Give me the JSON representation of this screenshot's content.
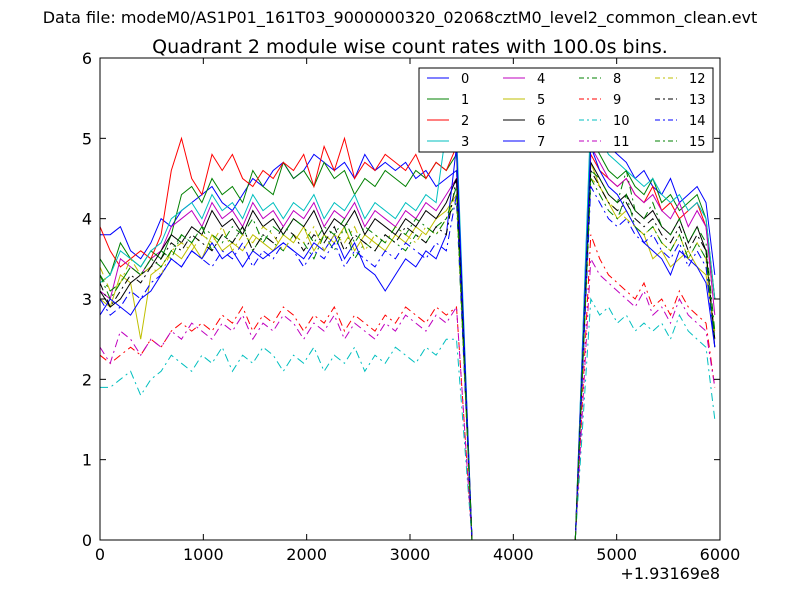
{
  "chart_data": {
    "type": "line",
    "supertitle": "Data file: modeM0/AS1P01_161T03_9000000320_02068cztM0_level2_common_clean.evt",
    "title": "Quadrant 2 module wise count rates with 100.0s bins.",
    "xlabel": "",
    "ylabel": "",
    "x_offset_label": "+1.93169e8",
    "xlim": [
      0,
      6000
    ],
    "ylim": [
      0,
      6
    ],
    "xticks": [
      0,
      1000,
      2000,
      3000,
      4000,
      5000,
      6000
    ],
    "xtick_labels": [
      "0",
      "1000",
      "2000",
      "3000",
      "4000",
      "5000",
      "6000"
    ],
    "yticks": [
      0,
      1,
      2,
      3,
      4,
      5,
      6
    ],
    "ytick_labels": [
      "0",
      "1",
      "2",
      "3",
      "4",
      "5",
      "6"
    ],
    "grid": false,
    "legend_position": "top-right",
    "gap": {
      "x_start": 3450,
      "x_drop": 3600,
      "x_rise_start": 4600,
      "x_peak": 4750
    },
    "series": [
      {
        "name": "0",
        "color": "#0000ff",
        "dash": "solid",
        "seg1": [
          3.8,
          3.8,
          3.9,
          3.6,
          3.5,
          3.7,
          4.0,
          3.9,
          4.1,
          4.2,
          4.3,
          4.4,
          4.2,
          4.1,
          4.3,
          4.5,
          4.4,
          4.6,
          4.7,
          4.5,
          4.6,
          4.8,
          4.7,
          4.6,
          4.7,
          4.5,
          4.8,
          4.6,
          4.7,
          4.6,
          4.7,
          4.5,
          4.6,
          4.4,
          4.5,
          4.6
        ],
        "seg2": [
          5.2,
          5.0,
          4.9,
          4.8,
          4.7,
          4.5,
          4.6,
          4.4,
          4.3,
          4.5,
          4.2,
          4.3,
          4.4,
          4.2,
          3.3
        ]
      },
      {
        "name": "1",
        "color": "#008000",
        "dash": "solid",
        "seg1": [
          3.5,
          3.3,
          3.7,
          3.5,
          3.4,
          3.6,
          3.5,
          3.8,
          4.3,
          4.4,
          4.2,
          4.5,
          4.3,
          4.4,
          4.2,
          4.6,
          4.4,
          4.3,
          4.7,
          4.5,
          4.6,
          4.4,
          4.7,
          4.5,
          4.6,
          4.3,
          4.5,
          4.4,
          4.6,
          4.5,
          4.4,
          4.6,
          4.5,
          4.7,
          4.6,
          4.8
        ],
        "seg2": [
          5.0,
          4.8,
          4.6,
          4.5,
          4.6,
          4.4,
          4.3,
          4.5,
          4.2,
          4.3,
          4.1,
          4.2,
          4.3,
          4.0,
          3.0
        ]
      },
      {
        "name": "2",
        "color": "#ff0000",
        "dash": "solid",
        "seg1": [
          3.9,
          3.6,
          3.4,
          3.5,
          3.6,
          3.5,
          3.8,
          4.6,
          5.0,
          4.5,
          4.3,
          4.8,
          4.6,
          4.8,
          4.5,
          4.4,
          4.6,
          4.5,
          4.7,
          4.6,
          4.8,
          4.4,
          4.9,
          4.6,
          5.0,
          4.5,
          4.7,
          4.6,
          4.8,
          4.7,
          4.6,
          4.8,
          4.5,
          4.7,
          4.6,
          4.9
        ],
        "seg2": [
          4.8,
          4.6,
          4.5,
          4.4,
          4.5,
          4.3,
          4.2,
          4.4,
          4.1,
          4.2,
          4.0,
          4.1,
          4.2,
          3.9,
          3.0
        ]
      },
      {
        "name": "3",
        "color": "#00bfbf",
        "dash": "solid",
        "seg1": [
          3.2,
          3.3,
          3.6,
          3.5,
          3.4,
          3.6,
          3.7,
          4.0,
          4.1,
          4.2,
          4.0,
          4.3,
          4.1,
          4.2,
          4.0,
          4.3,
          4.1,
          4.2,
          4.0,
          4.2,
          4.1,
          4.3,
          4.0,
          4.2,
          4.1,
          4.3,
          4.0,
          4.2,
          4.1,
          4.0,
          4.2,
          4.1,
          4.3,
          4.2,
          5.1,
          5.1
        ],
        "seg2": [
          5.3,
          5.0,
          4.8,
          4.7,
          4.6,
          4.5,
          4.4,
          4.5,
          4.3,
          4.2,
          4.3,
          4.1,
          4.2,
          4.0,
          3.0
        ]
      },
      {
        "name": "4",
        "color": "#bf00bf",
        "dash": "solid",
        "seg1": [
          3.1,
          3.0,
          3.5,
          3.4,
          3.3,
          3.5,
          3.6,
          3.9,
          4.0,
          4.1,
          3.9,
          4.2,
          4.0,
          4.1,
          3.9,
          4.2,
          4.0,
          4.1,
          3.9,
          4.1,
          4.0,
          4.2,
          3.9,
          4.1,
          4.0,
          4.2,
          3.9,
          4.1,
          4.0,
          3.9,
          4.1,
          4.0,
          4.2,
          4.1,
          4.3,
          4.5
        ],
        "seg2": [
          4.9,
          4.7,
          4.5,
          4.4,
          4.5,
          4.3,
          4.2,
          4.3,
          4.1,
          4.0,
          4.2,
          3.9,
          4.1,
          3.9,
          2.8
        ]
      },
      {
        "name": "5",
        "color": "#bfbf00",
        "dash": "solid",
        "seg1": [
          3.0,
          2.9,
          3.3,
          3.2,
          2.5,
          3.3,
          3.4,
          3.6,
          3.5,
          3.7,
          3.5,
          3.8,
          3.6,
          3.7,
          3.6,
          3.8,
          3.7,
          3.6,
          3.8,
          3.7,
          3.9,
          3.6,
          3.8,
          3.7,
          3.9,
          3.6,
          3.8,
          3.7,
          3.6,
          3.8,
          3.7,
          3.9,
          3.8,
          4.0,
          4.1,
          4.3
        ],
        "seg2": [
          4.7,
          4.4,
          4.2,
          4.0,
          4.1,
          3.9,
          3.8,
          3.5,
          3.6,
          3.4,
          3.5,
          3.6,
          3.4,
          3.3,
          2.6
        ]
      },
      {
        "name": "6",
        "color": "#000000",
        "dash": "solid",
        "seg1": [
          3.1,
          2.9,
          3.0,
          3.2,
          3.3,
          3.4,
          3.6,
          3.8,
          3.7,
          3.9,
          3.8,
          4.1,
          3.9,
          4.0,
          3.8,
          4.1,
          3.9,
          4.0,
          3.8,
          4.0,
          3.9,
          4.1,
          3.8,
          4.0,
          3.9,
          4.1,
          3.8,
          4.0,
          3.9,
          3.8,
          4.0,
          3.9,
          4.1,
          4.0,
          4.2,
          4.5
        ],
        "seg2": [
          4.7,
          4.5,
          4.3,
          4.2,
          4.3,
          4.1,
          4.0,
          4.1,
          3.9,
          3.8,
          4.0,
          3.7,
          3.9,
          3.6,
          2.4
        ]
      },
      {
        "name": "7",
        "color": "#0000ff",
        "dash": "solid",
        "seg1": [
          2.8,
          3.0,
          2.9,
          2.8,
          3.0,
          3.1,
          3.3,
          3.5,
          3.4,
          3.6,
          3.5,
          3.7,
          3.5,
          3.6,
          3.4,
          3.6,
          3.5,
          3.6,
          3.7,
          3.6,
          3.5,
          3.7,
          3.6,
          3.8,
          3.5,
          3.7,
          3.4,
          3.3,
          3.1,
          3.3,
          3.5,
          3.4,
          3.6,
          3.5,
          3.8,
          4.9
        ],
        "seg2": [
          4.9,
          4.6,
          4.4,
          4.3,
          4.1,
          3.9,
          3.7,
          3.6,
          3.5,
          3.3,
          3.6,
          3.5,
          3.4,
          3.2,
          2.4
        ]
      },
      {
        "name": "8",
        "color": "#008000",
        "dash": "dashdot",
        "seg1": [
          3.3,
          3.0,
          3.2,
          3.4,
          3.3,
          3.5,
          3.6,
          3.5,
          3.8,
          3.7,
          3.9,
          3.6,
          3.8,
          3.7,
          3.9,
          3.6,
          3.8,
          3.7,
          3.6,
          3.8,
          3.7,
          3.5,
          3.8,
          3.6,
          3.9,
          3.5,
          3.7,
          3.6,
          3.8,
          3.7,
          3.6,
          3.8,
          3.7,
          3.9,
          4.0,
          4.2
        ],
        "seg2": [
          4.6,
          4.5,
          4.3,
          4.2,
          4.6,
          4.1,
          4.0,
          4.2,
          3.9,
          3.8,
          4.0,
          3.7,
          3.9,
          3.7,
          2.6
        ]
      },
      {
        "name": "9",
        "color": "#ff0000",
        "dash": "dashdot",
        "seg1": [
          2.3,
          2.2,
          2.3,
          2.4,
          2.3,
          2.5,
          2.4,
          2.6,
          2.7,
          2.6,
          2.7,
          2.6,
          2.8,
          2.7,
          2.9,
          2.6,
          2.8,
          2.7,
          2.9,
          2.8,
          2.6,
          2.8,
          2.7,
          2.9,
          2.6,
          2.8,
          2.7,
          2.6,
          2.8,
          2.7,
          2.9,
          2.8,
          2.7,
          2.9,
          2.8,
          2.9
        ],
        "seg2": [
          3.8,
          3.5,
          3.3,
          3.2,
          3.1,
          3.0,
          3.2,
          2.9,
          3.0,
          2.8,
          3.1,
          2.9,
          2.8,
          2.7,
          1.9
        ]
      },
      {
        "name": "10",
        "color": "#00bfbf",
        "dash": "dashdot",
        "seg1": [
          1.9,
          1.9,
          2.0,
          2.1,
          1.8,
          2.0,
          2.1,
          2.3,
          2.2,
          2.1,
          2.3,
          2.2,
          2.4,
          2.1,
          2.3,
          2.2,
          2.4,
          2.3,
          2.1,
          2.3,
          2.2,
          2.4,
          2.1,
          2.3,
          2.2,
          2.4,
          2.1,
          2.3,
          2.2,
          2.4,
          2.3,
          2.2,
          2.4,
          2.3,
          2.5,
          2.5
        ],
        "seg2": [
          3.0,
          2.8,
          2.9,
          2.7,
          2.8,
          2.6,
          2.7,
          2.6,
          2.7,
          2.5,
          2.8,
          2.6,
          2.5,
          2.4,
          1.5
        ]
      },
      {
        "name": "11",
        "color": "#bf00bf",
        "dash": "dashdot",
        "seg1": [
          2.4,
          2.2,
          2.6,
          2.5,
          2.3,
          2.5,
          2.4,
          2.6,
          2.5,
          2.7,
          2.6,
          2.5,
          2.7,
          2.6,
          2.8,
          2.5,
          2.7,
          2.6,
          2.8,
          2.7,
          2.5,
          2.7,
          2.6,
          2.8,
          2.5,
          2.7,
          2.6,
          2.5,
          2.7,
          2.6,
          2.8,
          2.7,
          2.6,
          2.8,
          2.7,
          2.9
        ],
        "seg2": [
          3.5,
          3.3,
          3.2,
          3.1,
          3.0,
          2.9,
          3.1,
          2.8,
          2.9,
          2.7,
          3.0,
          2.8,
          2.7,
          2.6,
          1.9
        ]
      },
      {
        "name": "12",
        "color": "#bfbf00",
        "dash": "dashdot",
        "seg1": [
          3.4,
          3.1,
          3.2,
          3.5,
          3.3,
          3.4,
          3.3,
          3.6,
          3.7,
          3.6,
          3.8,
          3.7,
          3.9,
          3.6,
          3.8,
          3.7,
          3.9,
          3.8,
          3.6,
          3.8,
          3.7,
          3.9,
          3.6,
          3.8,
          3.7,
          3.9,
          3.6,
          3.8,
          3.7,
          3.9,
          3.8,
          3.7,
          3.9,
          3.8,
          4.0,
          4.3
        ],
        "seg2": [
          4.5,
          4.4,
          4.2,
          4.1,
          4.0,
          3.9,
          3.8,
          3.9,
          3.7,
          3.6,
          3.8,
          3.5,
          3.7,
          3.5,
          2.5
        ]
      },
      {
        "name": "13",
        "color": "#000000",
        "dash": "dashdot",
        "seg1": [
          3.2,
          2.9,
          3.1,
          3.3,
          3.2,
          3.4,
          3.5,
          3.7,
          3.6,
          3.8,
          3.7,
          3.6,
          3.8,
          3.7,
          3.9,
          3.6,
          3.8,
          3.7,
          3.9,
          3.8,
          3.6,
          3.8,
          3.7,
          3.9,
          3.6,
          3.8,
          3.7,
          3.6,
          3.8,
          3.7,
          3.9,
          3.8,
          3.7,
          3.9,
          3.8,
          4.5
        ],
        "seg2": [
          4.6,
          4.4,
          4.2,
          4.1,
          4.2,
          4.0,
          3.9,
          4.0,
          3.8,
          3.7,
          3.9,
          3.6,
          3.8,
          3.6,
          2.5
        ]
      },
      {
        "name": "14",
        "color": "#0000ff",
        "dash": "dashdot",
        "seg1": [
          3.0,
          2.8,
          2.9,
          3.1,
          3.0,
          3.2,
          3.3,
          3.5,
          3.4,
          3.6,
          3.5,
          3.4,
          3.6,
          3.5,
          3.7,
          3.4,
          3.6,
          3.5,
          3.7,
          3.6,
          3.4,
          3.6,
          3.5,
          3.7,
          3.4,
          3.6,
          3.5,
          3.4,
          3.6,
          3.5,
          3.7,
          3.6,
          3.5,
          3.7,
          3.6,
          4.3
        ],
        "seg2": [
          4.4,
          4.2,
          4.0,
          3.9,
          4.0,
          3.8,
          3.7,
          3.8,
          3.6,
          3.5,
          3.7,
          3.4,
          3.6,
          3.4,
          2.4
        ]
      },
      {
        "name": "15",
        "color": "#008000",
        "dash": "dashdot",
        "seg1": [
          3.3,
          3.1,
          3.2,
          3.4,
          3.3,
          3.5,
          3.4,
          3.6,
          3.8,
          3.7,
          3.9,
          3.8,
          3.7,
          3.9,
          3.8,
          4.0,
          3.7,
          3.9,
          3.8,
          4.0,
          3.9,
          3.7,
          3.9,
          3.8,
          4.0,
          3.7,
          3.9,
          3.8,
          3.7,
          3.9,
          3.8,
          4.0,
          3.9,
          3.8,
          4.0,
          4.4
        ],
        "seg2": [
          4.5,
          4.3,
          4.1,
          4.0,
          4.3,
          3.9,
          3.8,
          3.9,
          3.7,
          3.6,
          3.8,
          3.5,
          3.7,
          3.5,
          2.5
        ]
      }
    ]
  }
}
